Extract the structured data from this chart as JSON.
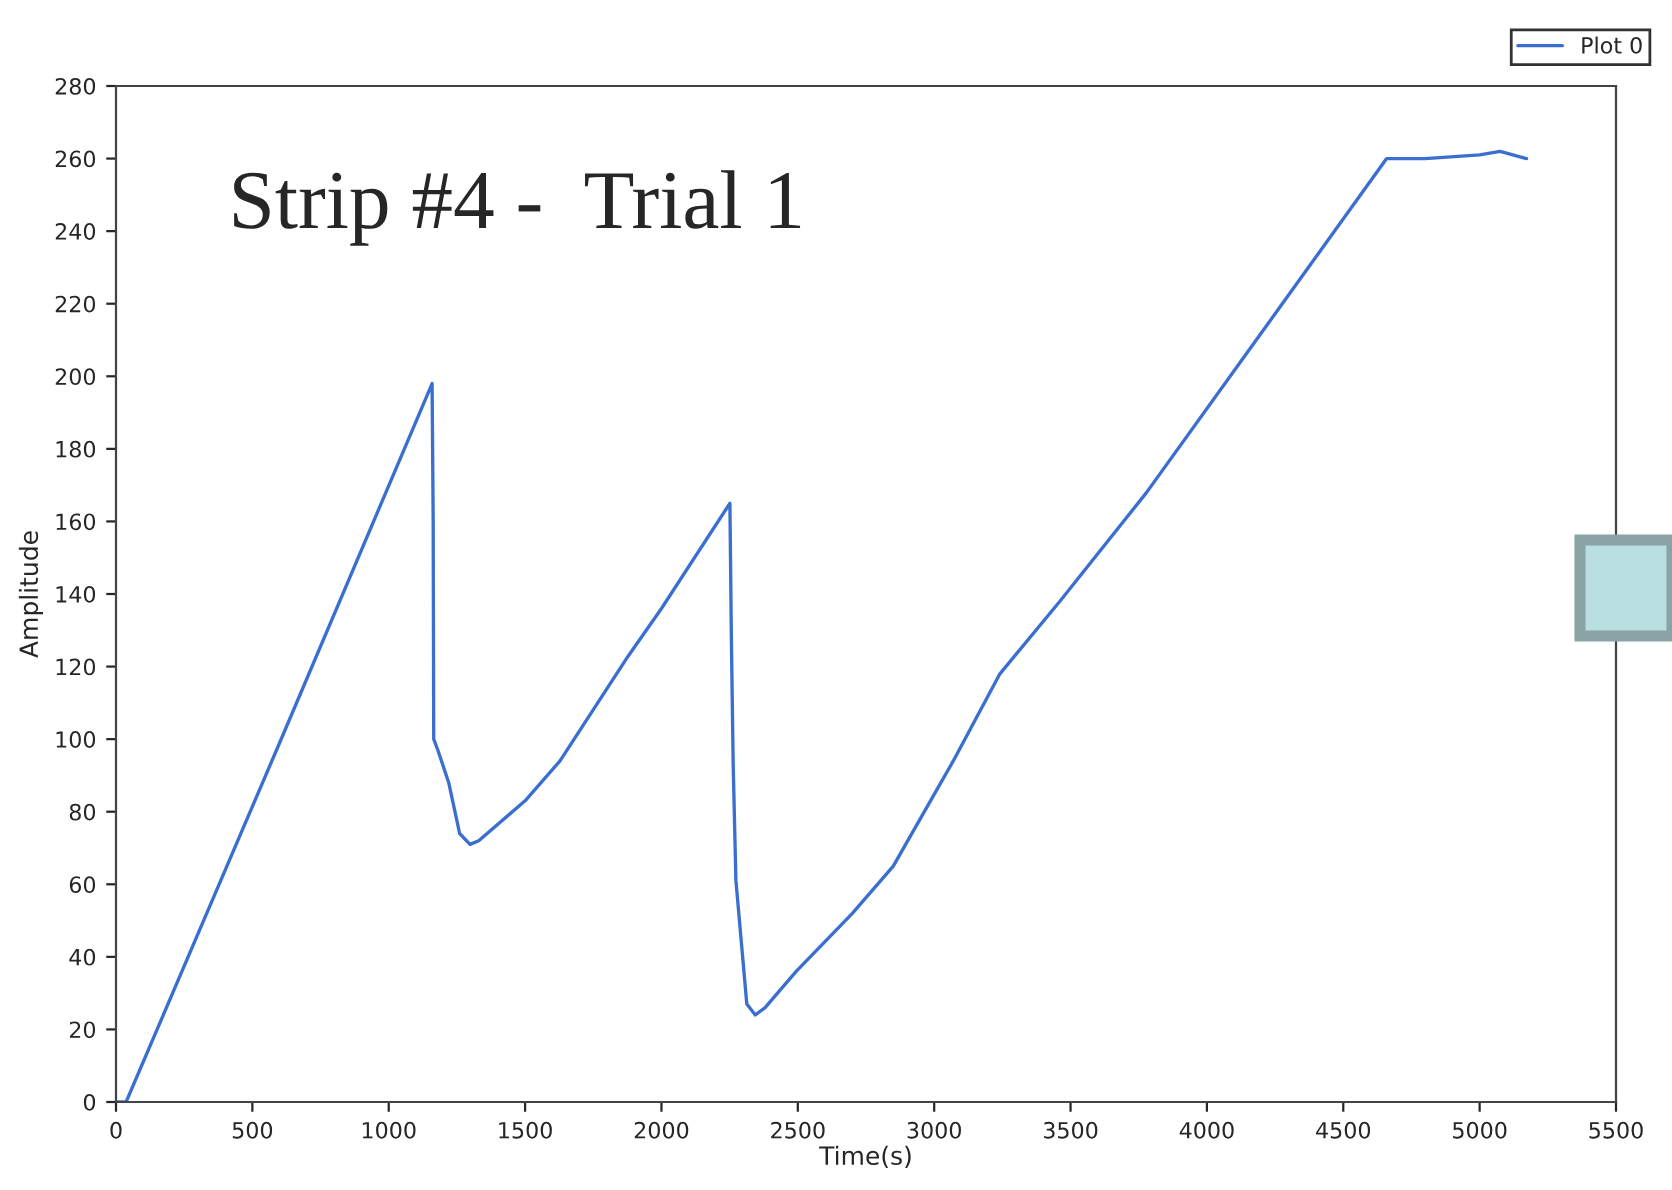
{
  "chart_data": {
    "type": "line",
    "xlabel": "Time(s)",
    "ylabel": "Amplitude",
    "annotations": [
      "Strip #4 -  Trial 1"
    ],
    "xlim": [
      0,
      5500
    ],
    "xticks": [
      0,
      500,
      1000,
      1500,
      2000,
      2500,
      3000,
      3500,
      4000,
      4500,
      5000,
      5500
    ],
    "ylim": [
      0,
      280
    ],
    "yticks": [
      0,
      20,
      40,
      60,
      80,
      100,
      120,
      140,
      160,
      180,
      200,
      220,
      240,
      260,
      280
    ],
    "grid": false,
    "legend": "top right",
    "marker": "none",
    "line_style": "solid",
    "series": [
      {
        "name": "Plot 0",
        "color": "#3a6fd0",
        "x": [
          0,
          37,
          600,
          1159,
          1163,
          1165,
          1180,
          1220,
          1260,
          1298,
          1330,
          1500,
          1628,
          1870,
          2000,
          2251,
          2256,
          2263,
          2273,
          2313,
          2344,
          2380,
          2494,
          2700,
          2850,
          3070,
          3241,
          3461,
          3779,
          4200,
          4659,
          4800,
          5000,
          5075,
          5172
        ],
        "values": [
          0,
          0,
          99,
          198,
          160,
          100,
          97,
          88,
          74,
          71,
          72,
          83,
          94,
          122,
          136,
          165,
          130,
          93,
          61,
          27,
          24,
          26,
          36,
          52,
          65,
          94,
          118,
          138,
          168,
          212,
          260,
          260,
          261,
          262,
          260
        ]
      }
    ]
  }
}
